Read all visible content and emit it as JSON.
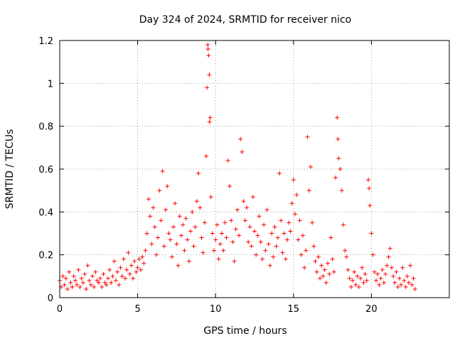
{
  "chart_data": {
    "type": "scatter",
    "title": "Day 324 of 2024, SRMTID for receiver nico",
    "xlabel": "GPS time / hours",
    "ylabel": "SRMTID / TECUs",
    "xlim": [
      0,
      25
    ],
    "ylim": [
      0,
      1.2
    ],
    "xticks": [
      0,
      5,
      10,
      15,
      20
    ],
    "xtick_labels": [
      "0",
      "5",
      "10",
      "15",
      "20"
    ],
    "yticks": [
      0,
      0.2,
      0.4,
      0.6,
      0.8,
      1.0,
      1.2
    ],
    "ytick_labels": [
      "0",
      "0.2",
      "0.4",
      "0.6",
      "0.8",
      "1",
      "1.2"
    ],
    "grid": true,
    "marker": "+",
    "marker_color": "#ff0000",
    "series": [
      {
        "name": "SRMTID",
        "points": [
          [
            0.0,
            0.08
          ],
          [
            0.1,
            0.05
          ],
          [
            0.2,
            0.1
          ],
          [
            0.3,
            0.06
          ],
          [
            0.4,
            0.09
          ],
          [
            0.5,
            0.04
          ],
          [
            0.6,
            0.12
          ],
          [
            0.7,
            0.07
          ],
          [
            0.8,
            0.05
          ],
          [
            0.9,
            0.1
          ],
          [
            1.0,
            0.08
          ],
          [
            1.1,
            0.06
          ],
          [
            1.2,
            0.13
          ],
          [
            1.3,
            0.05
          ],
          [
            1.4,
            0.09
          ],
          [
            1.5,
            0.07
          ],
          [
            1.6,
            0.11
          ],
          [
            1.7,
            0.04
          ],
          [
            1.8,
            0.15
          ],
          [
            1.9,
            0.08
          ],
          [
            2.0,
            0.06
          ],
          [
            2.1,
            0.1
          ],
          [
            2.2,
            0.05
          ],
          [
            2.3,
            0.12
          ],
          [
            2.4,
            0.08
          ],
          [
            2.5,
            0.07
          ],
          [
            2.6,
            0.09
          ],
          [
            2.7,
            0.05
          ],
          [
            2.8,
            0.11
          ],
          [
            2.9,
            0.07
          ],
          [
            3.0,
            0.06
          ],
          [
            3.1,
            0.09
          ],
          [
            3.2,
            0.13
          ],
          [
            3.3,
            0.07
          ],
          [
            3.4,
            0.1
          ],
          [
            3.5,
            0.17
          ],
          [
            3.6,
            0.08
          ],
          [
            3.7,
            0.12
          ],
          [
            3.8,
            0.06
          ],
          [
            3.9,
            0.14
          ],
          [
            4.0,
            0.1
          ],
          [
            4.1,
            0.18
          ],
          [
            4.2,
            0.09
          ],
          [
            4.3,
            0.13
          ],
          [
            4.4,
            0.21
          ],
          [
            4.5,
            0.11
          ],
          [
            4.6,
            0.15
          ],
          [
            4.7,
            0.09
          ],
          [
            4.8,
            0.17
          ],
          [
            4.9,
            0.12
          ],
          [
            5.0,
            0.14
          ],
          [
            5.1,
            0.18
          ],
          [
            5.2,
            0.13
          ],
          [
            5.3,
            0.19
          ],
          [
            5.4,
            0.16
          ],
          [
            5.5,
            0.22
          ],
          [
            5.6,
            0.3
          ],
          [
            5.7,
            0.46
          ],
          [
            5.8,
            0.38
          ],
          [
            5.9,
            0.25
          ],
          [
            6.0,
            0.42
          ],
          [
            6.1,
            0.33
          ],
          [
            6.2,
            0.2
          ],
          [
            6.3,
            0.28
          ],
          [
            6.4,
            0.5
          ],
          [
            6.5,
            0.36
          ],
          [
            6.6,
            0.59
          ],
          [
            6.7,
            0.24
          ],
          [
            6.8,
            0.41
          ],
          [
            6.9,
            0.52
          ],
          [
            7.0,
            0.3
          ],
          [
            7.1,
            0.27
          ],
          [
            7.2,
            0.19
          ],
          [
            7.3,
            0.33
          ],
          [
            7.4,
            0.44
          ],
          [
            7.5,
            0.25
          ],
          [
            7.6,
            0.15
          ],
          [
            7.7,
            0.38
          ],
          [
            7.8,
            0.29
          ],
          [
            7.9,
            0.34
          ],
          [
            8.0,
            0.22
          ],
          [
            8.1,
            0.37
          ],
          [
            8.2,
            0.27
          ],
          [
            8.3,
            0.17
          ],
          [
            8.4,
            0.31
          ],
          [
            8.5,
            0.4
          ],
          [
            8.6,
            0.24
          ],
          [
            8.7,
            0.33
          ],
          [
            8.8,
            0.45
          ],
          [
            8.9,
            0.58
          ],
          [
            9.0,
            0.42
          ],
          [
            9.1,
            0.28
          ],
          [
            9.2,
            0.21
          ],
          [
            9.3,
            0.35
          ],
          [
            9.4,
            0.66
          ],
          [
            9.45,
            0.98
          ],
          [
            9.5,
            1.18
          ],
          [
            9.52,
            1.16
          ],
          [
            9.55,
            1.13
          ],
          [
            9.6,
            1.04
          ],
          [
            9.62,
            0.82
          ],
          [
            9.65,
            0.84
          ],
          [
            9.7,
            0.47
          ],
          [
            9.8,
            0.3
          ],
          [
            9.9,
            0.22
          ],
          [
            10.0,
            0.27
          ],
          [
            10.1,
            0.34
          ],
          [
            10.2,
            0.18
          ],
          [
            10.3,
            0.25
          ],
          [
            10.4,
            0.3
          ],
          [
            10.5,
            0.22
          ],
          [
            10.6,
            0.35
          ],
          [
            10.7,
            0.28
          ],
          [
            10.8,
            0.64
          ],
          [
            10.9,
            0.52
          ],
          [
            11.0,
            0.36
          ],
          [
            11.1,
            0.26
          ],
          [
            11.2,
            0.17
          ],
          [
            11.3,
            0.32
          ],
          [
            11.4,
            0.41
          ],
          [
            11.5,
            0.29
          ],
          [
            11.6,
            0.74
          ],
          [
            11.7,
            0.68
          ],
          [
            11.8,
            0.45
          ],
          [
            11.9,
            0.36
          ],
          [
            12.0,
            0.42
          ],
          [
            12.1,
            0.26
          ],
          [
            12.2,
            0.33
          ],
          [
            12.3,
            0.24
          ],
          [
            12.4,
            0.47
          ],
          [
            12.5,
            0.31
          ],
          [
            12.6,
            0.2
          ],
          [
            12.7,
            0.29
          ],
          [
            12.8,
            0.38
          ],
          [
            12.9,
            0.26
          ],
          [
            13.0,
            0.18
          ],
          [
            13.1,
            0.34
          ],
          [
            13.2,
            0.22
          ],
          [
            13.3,
            0.41
          ],
          [
            13.4,
            0.25
          ],
          [
            13.5,
            0.15
          ],
          [
            13.6,
            0.3
          ],
          [
            13.7,
            0.19
          ],
          [
            13.8,
            0.33
          ],
          [
            13.9,
            0.24
          ],
          [
            14.0,
            0.28
          ],
          [
            14.1,
            0.58
          ],
          [
            14.2,
            0.36
          ],
          [
            14.3,
            0.21
          ],
          [
            14.4,
            0.3
          ],
          [
            14.5,
            0.18
          ],
          [
            14.6,
            0.27
          ],
          [
            14.7,
            0.35
          ],
          [
            14.8,
            0.31
          ],
          [
            14.9,
            0.44
          ],
          [
            15.0,
            0.55
          ],
          [
            15.1,
            0.39
          ],
          [
            15.2,
            0.48
          ],
          [
            15.3,
            0.27
          ],
          [
            15.4,
            0.36
          ],
          [
            15.5,
            0.2
          ],
          [
            15.6,
            0.29
          ],
          [
            15.7,
            0.14
          ],
          [
            15.8,
            0.22
          ],
          [
            15.9,
            0.75
          ],
          [
            16.0,
            0.5
          ],
          [
            16.1,
            0.61
          ],
          [
            16.2,
            0.35
          ],
          [
            16.3,
            0.24
          ],
          [
            16.4,
            0.17
          ],
          [
            16.5,
            0.12
          ],
          [
            16.6,
            0.19
          ],
          [
            16.7,
            0.09
          ],
          [
            16.8,
            0.15
          ],
          [
            16.9,
            0.1
          ],
          [
            17.0,
            0.13
          ],
          [
            17.1,
            0.07
          ],
          [
            17.2,
            0.16
          ],
          [
            17.3,
            0.11
          ],
          [
            17.4,
            0.28
          ],
          [
            17.5,
            0.18
          ],
          [
            17.6,
            0.12
          ],
          [
            17.7,
            0.56
          ],
          [
            17.8,
            0.84
          ],
          [
            17.85,
            0.74
          ],
          [
            17.9,
            0.65
          ],
          [
            18.0,
            0.6
          ],
          [
            18.1,
            0.5
          ],
          [
            18.2,
            0.34
          ],
          [
            18.3,
            0.22
          ],
          [
            18.4,
            0.19
          ],
          [
            18.5,
            0.13
          ],
          [
            18.6,
            0.09
          ],
          [
            18.7,
            0.05
          ],
          [
            18.8,
            0.08
          ],
          [
            18.9,
            0.12
          ],
          [
            19.0,
            0.06
          ],
          [
            19.1,
            0.1
          ],
          [
            19.2,
            0.05
          ],
          [
            19.3,
            0.09
          ],
          [
            19.4,
            0.14
          ],
          [
            19.5,
            0.07
          ],
          [
            19.6,
            0.11
          ],
          [
            19.7,
            0.08
          ],
          [
            19.8,
            0.55
          ],
          [
            19.85,
            0.51
          ],
          [
            19.9,
            0.43
          ],
          [
            20.0,
            0.3
          ],
          [
            20.1,
            0.2
          ],
          [
            20.2,
            0.12
          ],
          [
            20.3,
            0.08
          ],
          [
            20.4,
            0.11
          ],
          [
            20.5,
            0.06
          ],
          [
            20.6,
            0.09
          ],
          [
            20.7,
            0.13
          ],
          [
            20.8,
            0.07
          ],
          [
            20.9,
            0.11
          ],
          [
            21.0,
            0.15
          ],
          [
            21.1,
            0.19
          ],
          [
            21.2,
            0.23
          ],
          [
            21.3,
            0.14
          ],
          [
            21.4,
            0.1
          ],
          [
            21.5,
            0.07
          ],
          [
            21.6,
            0.12
          ],
          [
            21.7,
            0.05
          ],
          [
            21.8,
            0.09
          ],
          [
            21.9,
            0.06
          ],
          [
            22.0,
            0.14
          ],
          [
            22.1,
            0.08
          ],
          [
            22.2,
            0.05
          ],
          [
            22.3,
            0.1
          ],
          [
            22.4,
            0.07
          ],
          [
            22.5,
            0.15
          ],
          [
            22.6,
            0.06
          ],
          [
            22.7,
            0.09
          ],
          [
            22.8,
            0.04
          ]
        ]
      }
    ]
  }
}
